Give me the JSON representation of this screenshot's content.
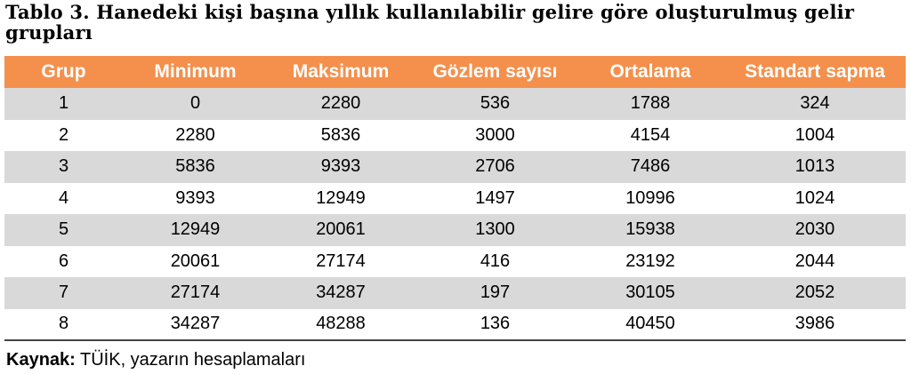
{
  "caption": {
    "line1": "Tablo 3. Hanedeki kişi başına yıllık kullanılabilir gelire göre oluşturulmuş gelir",
    "line2": "grupları"
  },
  "table": {
    "columns": [
      "Grup",
      "Minimum",
      "Maksimum",
      "Gözlem sayısı",
      "Ortalama",
      "Standart sapma"
    ],
    "header_color": "#f4904c",
    "shade_color": "#d9d9d9",
    "rows": [
      [
        "1",
        "0",
        "2280",
        "536",
        "1788",
        "324"
      ],
      [
        "2",
        "2280",
        "5836",
        "3000",
        "4154",
        "1004"
      ],
      [
        "3",
        "5836",
        "9393",
        "2706",
        "7486",
        "1013"
      ],
      [
        "4",
        "9393",
        "12949",
        "1497",
        "10996",
        "1024"
      ],
      [
        "5",
        "12949",
        "20061",
        "1300",
        "15938",
        "2030"
      ],
      [
        "6",
        "20061",
        "27174",
        "416",
        "23192",
        "2044"
      ],
      [
        "7",
        "27174",
        "34287",
        "197",
        "30105",
        "2052"
      ],
      [
        "8",
        "34287",
        "48288",
        "136",
        "40450",
        "3986"
      ]
    ]
  },
  "source": {
    "label": "Kaynak:",
    "text": " TÜİK, yazarın hesaplamaları"
  }
}
